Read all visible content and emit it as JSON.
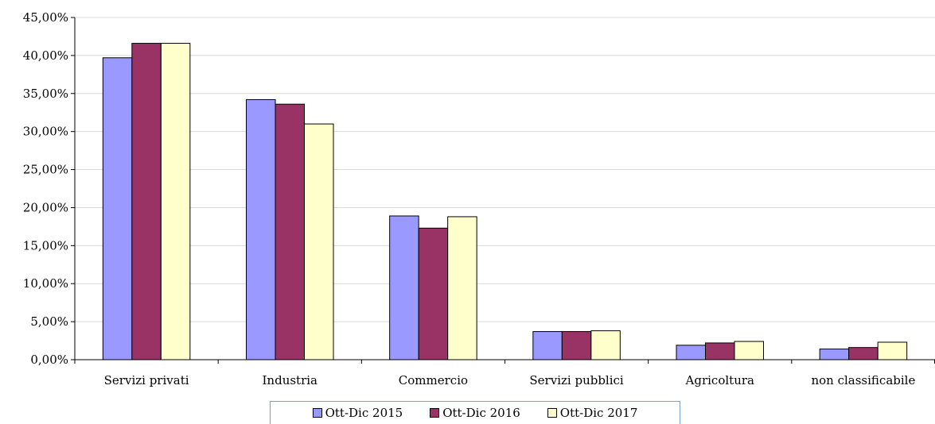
{
  "chart_data": {
    "type": "bar",
    "categories": [
      "Servizi privati",
      "Industria",
      "Commercio",
      "Servizi pubblici",
      "Agricoltura",
      "non classificabile"
    ],
    "series": [
      {
        "name": "Ott-Dic 2015",
        "color": "#9999ff",
        "values": [
          39.7,
          34.2,
          18.9,
          3.7,
          1.9,
          1.4
        ]
      },
      {
        "name": "Ott-Dic 2016",
        "color": "#993366",
        "values": [
          41.6,
          33.6,
          17.3,
          3.7,
          2.2,
          1.6
        ]
      },
      {
        "name": "Ott-Dic 2017",
        "color": "#ffffcc",
        "values": [
          41.6,
          31.0,
          18.8,
          3.8,
          2.4,
          2.3
        ]
      }
    ],
    "ylim": [
      0,
      45
    ],
    "yticks": [
      "0,00%",
      "5,00%",
      "10,00%",
      "15,00%",
      "20,00%",
      "25,00%",
      "30,00%",
      "35,00%",
      "40,00%",
      "45,00%"
    ],
    "grid": true,
    "legend_position": "bottom"
  }
}
